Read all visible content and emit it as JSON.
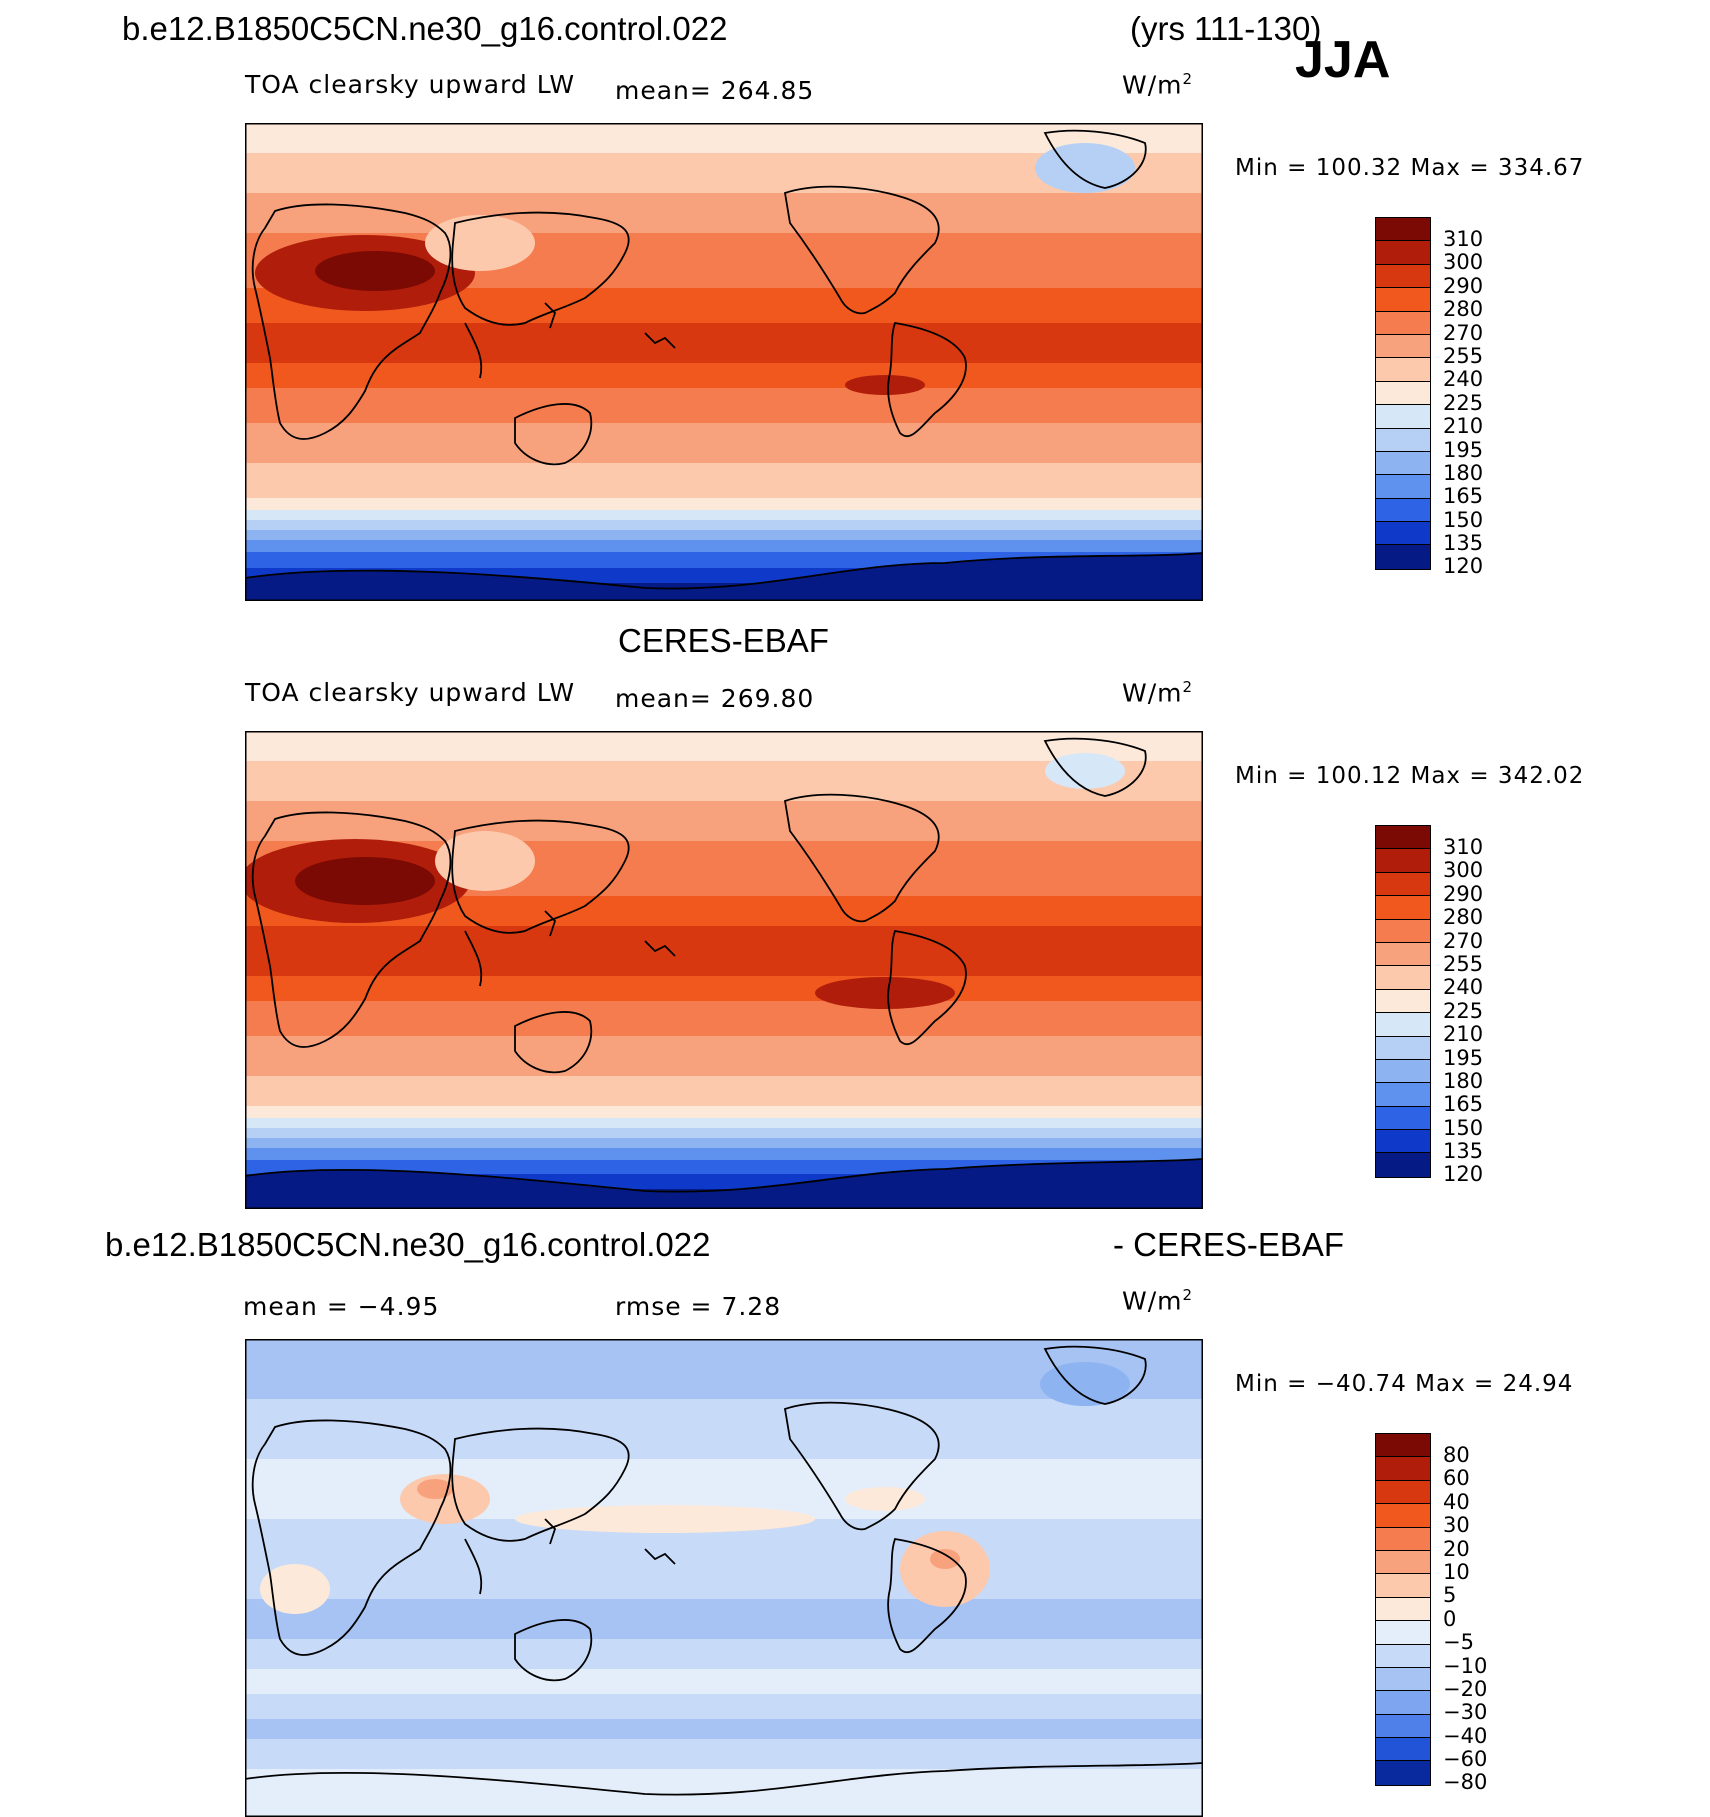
{
  "header": {
    "case_name": "b.e12.B1850C5CN.ne30_g16.control.022",
    "years": "(yrs 111-130)",
    "season": "JJA"
  },
  "panels": [
    {
      "id": "model",
      "variable": "TOA clearsky upward LW",
      "mean_label": "mean=  264.85",
      "units": "W/m",
      "units_sup": "2",
      "min_max": "Min  =  100.32  Max  =  334.67",
      "colorbar_labels": [
        "310",
        "300",
        "290",
        "280",
        "270",
        "255",
        "240",
        "225",
        "210",
        "195",
        "180",
        "165",
        "150",
        "135",
        "120"
      ],
      "colors": [
        "#7a0a03",
        "#b01d0a",
        "#d8380f",
        "#f0581e",
        "#f47c4e",
        "#f8a27d",
        "#fcc9ad",
        "#fde9da",
        "#d6e7f7",
        "#b5d0f4",
        "#8db4f1",
        "#5f91ee",
        "#2f63e6",
        "#0f39c9",
        "#061a86"
      ]
    },
    {
      "id": "obs",
      "title": "CERES-EBAF",
      "variable": "TOA clearsky upward LW",
      "mean_label": "mean=  269.80",
      "units": "W/m",
      "units_sup": "2",
      "min_max": "Min  =  100.12  Max  =  342.02",
      "colorbar_labels": [
        "310",
        "300",
        "290",
        "280",
        "270",
        "255",
        "240",
        "225",
        "210",
        "195",
        "180",
        "165",
        "150",
        "135",
        "120"
      ],
      "colors": [
        "#7a0a03",
        "#b01d0a",
        "#d8380f",
        "#f0581e",
        "#f47c4e",
        "#f8a27d",
        "#fcc9ad",
        "#fde9da",
        "#d6e7f7",
        "#b5d0f4",
        "#8db4f1",
        "#5f91ee",
        "#2f63e6",
        "#0f39c9",
        "#061a86"
      ]
    },
    {
      "id": "diff",
      "title_left": "b.e12.B1850C5CN.ne30_g16.control.022",
      "title_right": "- CERES-EBAF",
      "mean_label": "mean  =    −4.95",
      "rmse_label": "rmse  =     7.28",
      "units": "W/m",
      "units_sup": "2",
      "min_max": "Min  = −40.74  Max  =    24.94",
      "colorbar_labels": [
        "80",
        "60",
        "40",
        "30",
        "20",
        "10",
        "5",
        "0",
        "−5",
        "−10",
        "−20",
        "−30",
        "−40",
        "−60",
        "−80"
      ],
      "colors": [
        "#7a0a03",
        "#b01d0a",
        "#d8380f",
        "#f0581e",
        "#f47c4e",
        "#f8a27d",
        "#fcc9ad",
        "#fde9da",
        "#e4eefb",
        "#c7daf8",
        "#a6c3f3",
        "#7ea5ef",
        "#4f80ea",
        "#2254d8",
        "#082a9e"
      ]
    }
  ]
}
